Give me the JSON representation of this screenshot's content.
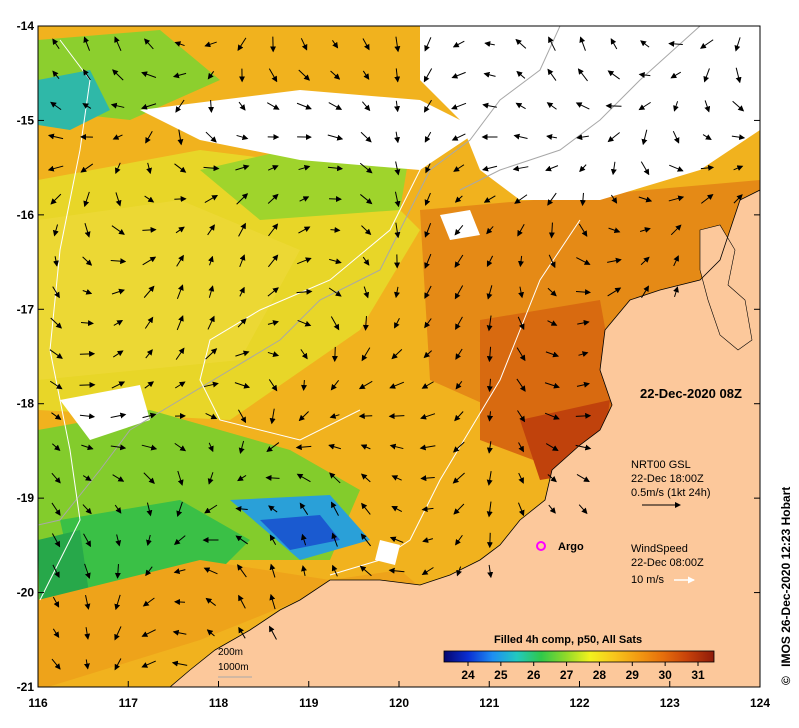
{
  "map": {
    "timestamp": "22-Dec-2020 08Z",
    "x_ticks": [
      "116",
      "117",
      "118",
      "119",
      "120",
      "121",
      "122",
      "123",
      "124"
    ],
    "y_ticks": [
      "-14",
      "-15",
      "-16",
      "-17",
      "-18",
      "-19",
      "-20",
      "-21"
    ],
    "lon_range": [
      116,
      124
    ],
    "lat_range": [
      -21,
      -14
    ]
  },
  "currents": {
    "product": "NRT00 GSL",
    "time": "22-Dec 18:00Z",
    "scale": "0.5m/s (1kt 24h)"
  },
  "wind": {
    "product": "WindSpeed",
    "time": "22-Dec 08:00Z",
    "scale": "10 m/s"
  },
  "argo": {
    "label": "Argo",
    "color": "#ff00ff"
  },
  "bathymetry": {
    "contour_1": "200m",
    "contour_2": "1000m"
  },
  "colorbar": {
    "title": "Filled 4h comp, p50, All Sats",
    "ticks": [
      "24",
      "25",
      "26",
      "27",
      "28",
      "29",
      "30",
      "31"
    ],
    "colors": [
      "#06066e",
      "#0a2fd4",
      "#1e8ef2",
      "#22c9c0",
      "#2fc84a",
      "#8ed92a",
      "#f2f21e",
      "#f7c61c",
      "#f29a12",
      "#e66f0c",
      "#c8420a",
      "#8e1b0a"
    ]
  },
  "credit": "IMOS 26-Dec-2020 12:23 Hobart",
  "copyright_symbol": "©",
  "colors": {
    "land": "#fcc89b",
    "cloud": "#ffffff",
    "frame": "#000000"
  }
}
